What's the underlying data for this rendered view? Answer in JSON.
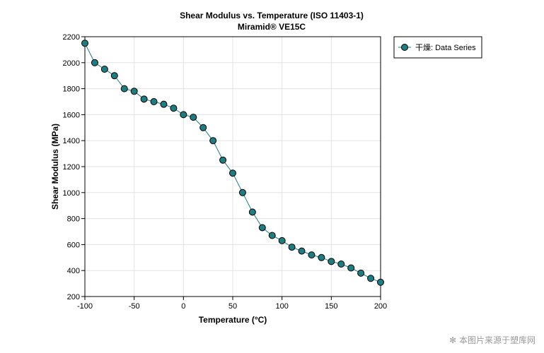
{
  "chart_data": {
    "type": "line",
    "title": "Shear Modulus vs. Temperature (ISO 11403-1)",
    "subtitle": "Miramid® VE15C",
    "xlabel": "Temperature (°C)",
    "ylabel": "Shear Modulus (MPa)",
    "xlim": [
      -100,
      200
    ],
    "ylim": [
      200,
      2200
    ],
    "xticks": [
      -100,
      -50,
      0,
      50,
      100,
      150,
      200
    ],
    "yticks": [
      200,
      400,
      600,
      800,
      1000,
      1200,
      1400,
      1600,
      1800,
      2000,
      2200
    ],
    "grid": true,
    "legend_position": "top-right, outside plot area",
    "series": [
      {
        "name": "干燥: Data Series",
        "color": "#1d7d80",
        "marker": "circle",
        "x": [
          -100,
          -90,
          -80,
          -70,
          -60,
          -50,
          -40,
          -30,
          -20,
          -10,
          0,
          10,
          20,
          30,
          40,
          50,
          60,
          70,
          80,
          90,
          100,
          110,
          120,
          130,
          140,
          150,
          160,
          170,
          180,
          190,
          200
        ],
        "y": [
          2150,
          2000,
          1950,
          1900,
          1800,
          1780,
          1720,
          1700,
          1680,
          1650,
          1600,
          1580,
          1500,
          1400,
          1250,
          1150,
          1000,
          850,
          730,
          670,
          630,
          580,
          550,
          520,
          500,
          470,
          450,
          420,
          380,
          340,
          310
        ]
      }
    ]
  },
  "watermark": "本图片来源于塑库网",
  "watermark_icon": "asterisk-icon"
}
